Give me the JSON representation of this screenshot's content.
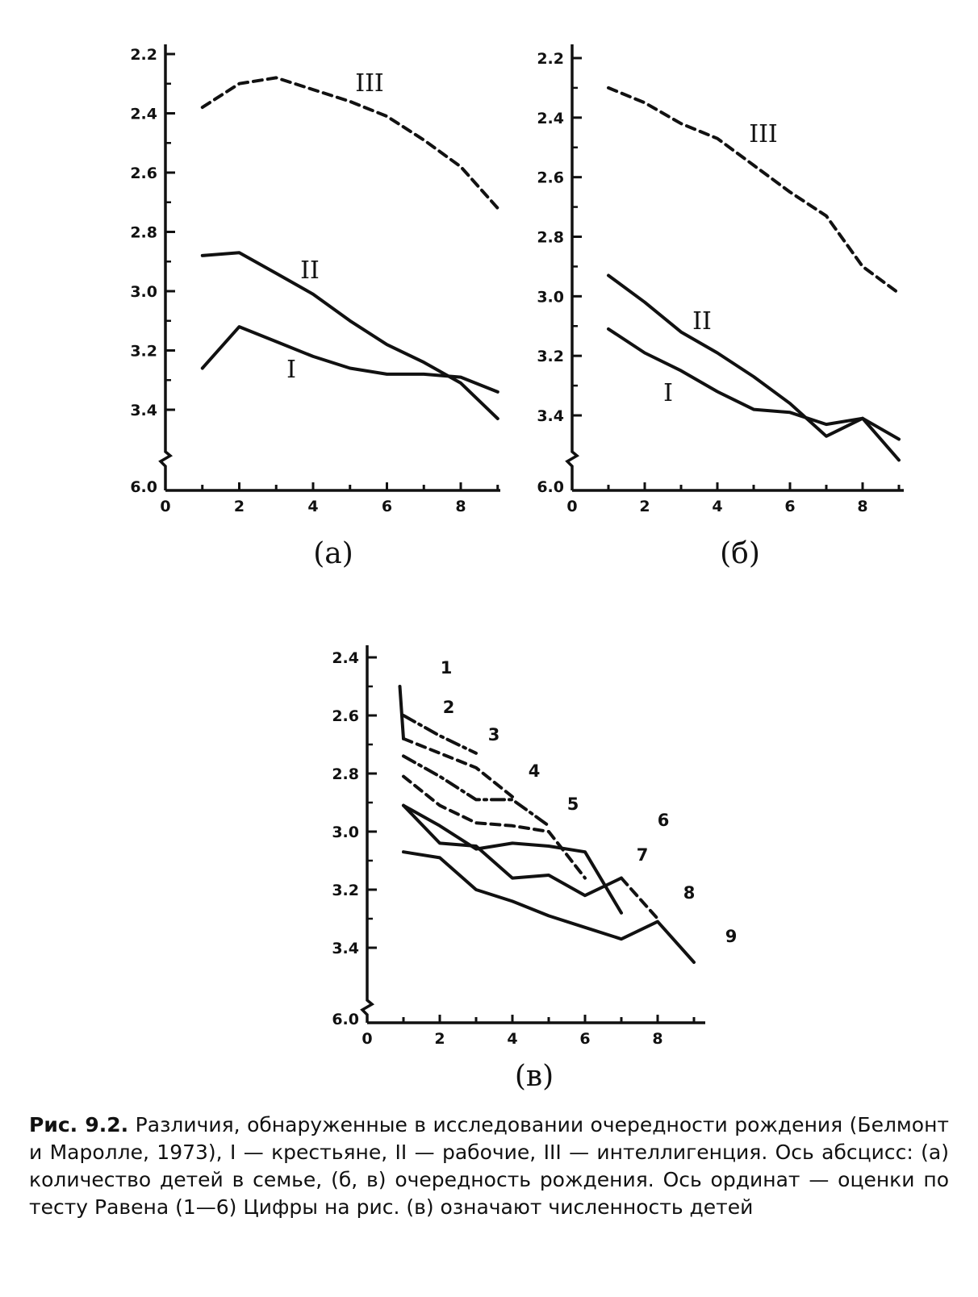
{
  "chart_data": [
    {
      "type": "line",
      "panel_label": "(а)",
      "x_ticks": [
        "0",
        "2",
        "4",
        "6",
        "8"
      ],
      "y_ticks": [
        "2.2",
        "2.4",
        "2.6",
        "2.8",
        "3.0",
        "3.2",
        "3.4"
      ],
      "y_bottom_label": "6.0",
      "y_axis_inverted": true,
      "xlim": [
        0,
        9
      ],
      "ylim": [
        2.2,
        3.5
      ],
      "series": [
        {
          "name": "III",
          "style": "dashed",
          "x": [
            1,
            2,
            3,
            4,
            5,
            6,
            7,
            8,
            9
          ],
          "y": [
            2.38,
            2.3,
            2.28,
            2.32,
            2.36,
            2.41,
            2.49,
            2.58,
            2.72
          ]
        },
        {
          "name": "II",
          "style": "solid",
          "x": [
            1,
            2,
            3,
            4,
            5,
            6,
            7,
            8,
            9
          ],
          "y": [
            2.88,
            2.87,
            2.94,
            3.01,
            3.1,
            3.18,
            3.24,
            3.31,
            3.43
          ]
        },
        {
          "name": "I",
          "style": "solid",
          "x": [
            1,
            2,
            3,
            4,
            5,
            6,
            7,
            8,
            9
          ],
          "y": [
            3.26,
            3.12,
            3.17,
            3.22,
            3.26,
            3.28,
            3.28,
            3.29,
            3.34
          ]
        }
      ]
    },
    {
      "type": "line",
      "panel_label": "(б)",
      "x_ticks": [
        "0",
        "2",
        "4",
        "6",
        "8"
      ],
      "y_ticks": [
        "2.2",
        "2.4",
        "2.6",
        "2.8",
        "3.0",
        "3.2",
        "3.4"
      ],
      "y_bottom_label": "6.0",
      "y_axis_inverted": true,
      "xlim": [
        0,
        9
      ],
      "ylim": [
        2.2,
        3.5
      ],
      "series": [
        {
          "name": "III",
          "style": "dashed",
          "x": [
            1,
            2,
            3,
            4,
            5,
            6,
            7,
            8,
            9
          ],
          "y": [
            2.3,
            2.35,
            2.42,
            2.47,
            2.56,
            2.65,
            2.73,
            2.9,
            2.99
          ]
        },
        {
          "name": "II",
          "style": "solid",
          "x": [
            1,
            2,
            3,
            4,
            5,
            6,
            7,
            8,
            9
          ],
          "y": [
            2.93,
            3.02,
            3.12,
            3.19,
            3.27,
            3.36,
            3.47,
            3.41,
            3.55
          ]
        },
        {
          "name": "I",
          "style": "solid",
          "x": [
            1,
            2,
            3,
            4,
            5,
            6,
            7,
            8,
            9
          ],
          "y": [
            3.11,
            3.19,
            3.25,
            3.32,
            3.38,
            3.39,
            3.43,
            3.41,
            3.48
          ]
        }
      ]
    },
    {
      "type": "line",
      "panel_label": "(в)",
      "x_ticks": [
        "0",
        "2",
        "4",
        "6",
        "8"
      ],
      "y_ticks": [
        "2.4",
        "2.6",
        "2.8",
        "3.0",
        "3.2",
        "3.4"
      ],
      "y_bottom_label": "6.0",
      "y_axis_inverted": true,
      "xlim": [
        0,
        9
      ],
      "ylim": [
        2.4,
        3.5
      ],
      "series": [
        {
          "name": "1",
          "style": "solid",
          "x": [
            0.9,
            1
          ],
          "y": [
            2.5,
            2.68
          ]
        },
        {
          "name": "2",
          "style": "dashdot",
          "x": [
            1,
            2,
            3
          ],
          "y": [
            2.6,
            2.67,
            2.73
          ]
        },
        {
          "name": "3",
          "style": "dashed",
          "x": [
            1,
            2,
            3,
            4
          ],
          "y": [
            2.68,
            2.73,
            2.78,
            2.88
          ]
        },
        {
          "name": "4",
          "style": "dashdot",
          "x": [
            1,
            2,
            3,
            4,
            5
          ],
          "y": [
            2.74,
            2.81,
            2.89,
            2.89,
            2.98
          ]
        },
        {
          "name": "5",
          "style": "dashed",
          "x": [
            1,
            2,
            3,
            4,
            5,
            6
          ],
          "y": [
            2.81,
            2.91,
            2.97,
            2.98,
            3.0,
            3.16
          ]
        },
        {
          "name": "6",
          "style": "solid",
          "x": [
            1,
            2,
            3,
            4,
            5,
            6,
            7
          ],
          "y": [
            2.91,
            2.98,
            3.06,
            3.04,
            3.05,
            3.07,
            3.28
          ]
        },
        {
          "name": "7",
          "style": "solid",
          "x": [
            1,
            2,
            3,
            4,
            5,
            6,
            7
          ],
          "y": [
            2.91,
            3.04,
            3.05,
            3.16,
            3.15,
            3.22,
            3.16
          ]
        },
        {
          "name": "8",
          "style": "dashed",
          "x": [
            7,
            8
          ],
          "y": [
            3.16,
            3.3
          ]
        },
        {
          "name": "9",
          "style": "solid",
          "x": [
            1,
            2,
            3,
            4,
            5,
            6,
            7,
            8,
            9
          ],
          "y": [
            3.07,
            3.09,
            3.2,
            3.24,
            3.29,
            3.33,
            3.37,
            3.31,
            3.45
          ]
        }
      ]
    }
  ],
  "caption": {
    "figure": "Рис. 9.2.",
    "text": "Различия, обнаруженные в исследовании очередности рождения (Белмонт и Маролле, 1973), I — крестьяне, II — рабочие, III — интеллигенция. Ось абсцисс: (а) количество детей в семье, (б, в) очередность рождения. Ось ординат — оценки по тесту Равена (1—6) Цифры на рис. (в) означают численность детей"
  }
}
